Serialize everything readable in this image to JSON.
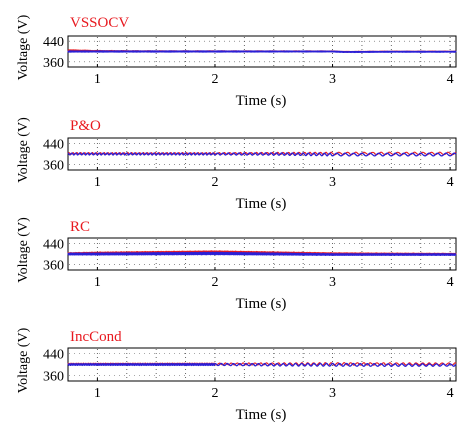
{
  "colors": {
    "series_a": "#e8191f",
    "series_b": "#2b1fd6",
    "grid": "#555555",
    "frame": "#000000"
  },
  "chart_data": [
    {
      "type": "line",
      "title": "VSSOCV",
      "xlabel": "Time (s)",
      "ylabel": "Voltage (V)",
      "xlim": [
        0.75,
        4.05
      ],
      "ylim": [
        340,
        460
      ],
      "yticks": [
        "440",
        "360"
      ],
      "xticks": [
        "1",
        "2",
        "3",
        "4"
      ],
      "grid": true,
      "series": [
        {
          "color": "#e8191f",
          "x": [
            0.75,
            1.0,
            1.5,
            2.0,
            2.5,
            3.0,
            3.1,
            3.5,
            4.05
          ],
          "y": [
            405,
            402,
            401,
            401,
            401,
            401,
            399,
            400,
            400
          ]
        },
        {
          "color": "#2b1fd6",
          "x": [
            0.75,
            1.0,
            1.5,
            2.0,
            2.5,
            3.0,
            3.1,
            3.5,
            4.05
          ],
          "y": [
            400,
            400,
            400,
            400,
            400,
            400,
            398,
            399,
            399
          ]
        }
      ]
    },
    {
      "type": "line",
      "title": "P&O",
      "xlabel": "Time (s)",
      "ylabel": "Voltage (V)",
      "xlim": [
        0.75,
        4.05
      ],
      "ylim": [
        340,
        460
      ],
      "yticks": [
        "440",
        "360"
      ],
      "xticks": [
        "1",
        "2",
        "3",
        "4"
      ],
      "grid": true,
      "series": [
        {
          "color": "#e8191f",
          "x": [
            0.75,
            1.0,
            1.5,
            2.0,
            2.5,
            3.0,
            3.5,
            4.05
          ],
          "y": [
            402,
            402,
            402,
            402,
            402,
            402,
            402,
            402
          ]
        },
        {
          "color": "#2b1fd6",
          "x": [
            0.75,
            1.0,
            1.5,
            2.0,
            2.5,
            3.0,
            3.5,
            4.05
          ],
          "y": [
            400,
            400,
            400,
            400,
            400,
            398,
            398,
            398
          ]
        }
      ]
    },
    {
      "type": "line",
      "title": "RC",
      "xlabel": "Time (s)",
      "ylabel": "Voltage (V)",
      "xlim": [
        0.75,
        4.05
      ],
      "ylim": [
        340,
        460
      ],
      "yticks": [
        "440",
        "360"
      ],
      "xticks": [
        "1",
        "2",
        "3",
        "4"
      ],
      "grid": true,
      "series": [
        {
          "color": "#e8191f",
          "x": [
            0.75,
            1.0,
            1.5,
            2.0,
            2.5,
            3.0,
            3.5,
            4.05
          ],
          "y": [
            402,
            404,
            406,
            408,
            405,
            402,
            401,
            400
          ]
        },
        {
          "color": "#2b1fd6",
          "x": [
            0.75,
            1.0,
            1.5,
            2.0,
            2.5,
            3.0,
            3.5,
            4.05
          ],
          "y": [
            400,
            400,
            401,
            402,
            400,
            398,
            398,
            398
          ]
        }
      ]
    },
    {
      "type": "line",
      "title": "IncCond",
      "xlabel": "Time (s)",
      "ylabel": "Voltage (V)",
      "xlim": [
        0.75,
        4.05
      ],
      "ylim": [
        340,
        460
      ],
      "yticks": [
        "440",
        "360"
      ],
      "xticks": [
        "1",
        "2",
        "3",
        "4"
      ],
      "grid": true,
      "series": [
        {
          "color": "#e8191f",
          "x": [
            0.75,
            1.0,
            1.5,
            2.0,
            2.5,
            3.0,
            3.5,
            4.05
          ],
          "y": [
            402,
            402,
            402,
            402,
            402,
            402,
            402,
            402
          ]
        },
        {
          "color": "#2b1fd6",
          "x": [
            0.75,
            1.0,
            1.5,
            2.0,
            2.5,
            3.0,
            3.5,
            4.05
          ],
          "y": [
            400,
            400,
            400,
            400,
            399,
            399,
            398,
            398
          ]
        }
      ]
    }
  ]
}
